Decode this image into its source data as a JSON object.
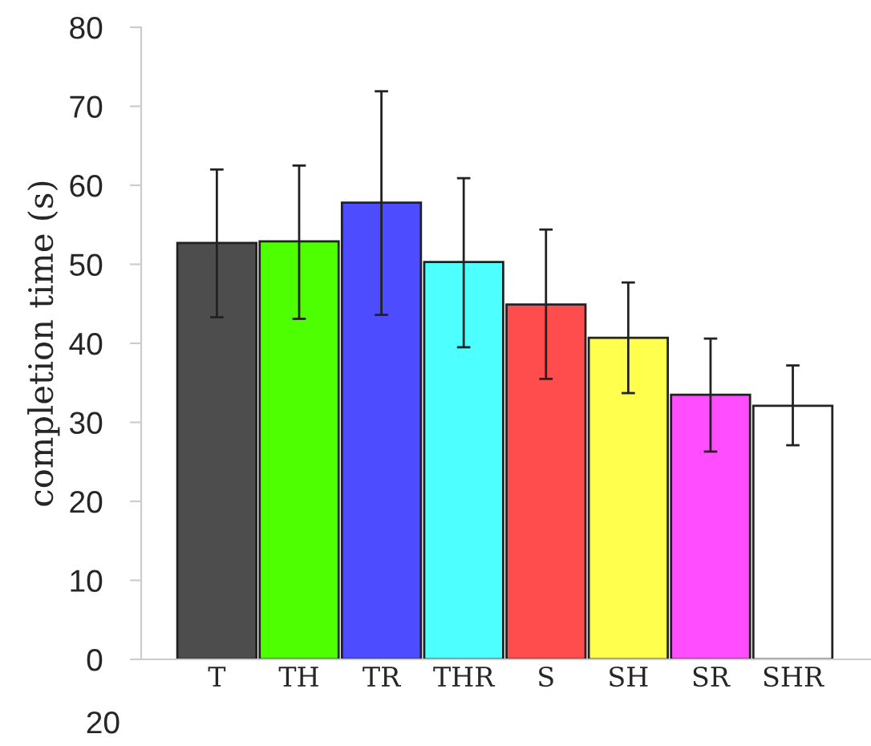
{
  "chart_data": {
    "type": "bar",
    "ylabel": "completion time (s)",
    "categories": [
      "T",
      "TH",
      "TR",
      "THR",
      "S",
      "SH",
      "SR",
      "SHR"
    ],
    "values": [
      52.7,
      52.9,
      57.8,
      50.3,
      44.9,
      40.7,
      33.5,
      32.1
    ],
    "colors": [
      "#4d4d4d",
      "#4dff00",
      "#4d4dff",
      "#4dffff",
      "#ff4d4d",
      "#ffff4d",
      "#ff4dff",
      "#ffffff"
    ],
    "errors": [
      [
        43.3,
        62.0
      ],
      [
        43.1,
        62.5
      ],
      [
        43.6,
        71.9
      ],
      [
        39.5,
        60.9
      ],
      [
        35.5,
        54.4
      ],
      [
        33.7,
        47.7
      ],
      [
        26.3,
        40.6
      ],
      [
        27.1,
        37.2
      ]
    ],
    "ylim": [
      0,
      80
    ],
    "yticks": [
      0,
      10,
      20,
      30,
      40,
      50,
      60,
      70,
      80
    ],
    "annotations": [
      "20"
    ],
    "grid": false,
    "legend": false
  }
}
